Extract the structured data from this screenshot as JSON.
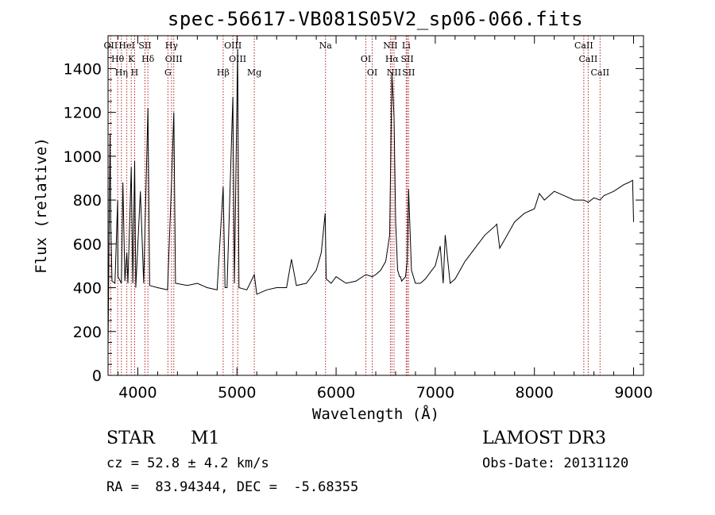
{
  "chart_data": {
    "type": "line",
    "title": "spec-56617-VB081S05V2_sp06-066.fits",
    "xlabel": "Wavelength (Å)",
    "ylabel": "Flux (relative)",
    "xlim": [
      3700,
      9100
    ],
    "ylim": [
      0,
      1550
    ],
    "xticks": [
      4000,
      5000,
      6000,
      7000,
      8000,
      9000
    ],
    "yticks": [
      0,
      200,
      400,
      600,
      800,
      1000,
      1200,
      1400
    ],
    "line_color": "#000000",
    "marker_color": "#b22222",
    "series": [
      {
        "x": [
          3700,
          3720,
          3727,
          3740,
          3770,
          3797,
          3800,
          3835,
          3850,
          3870,
          3889,
          3900,
          3934,
          3950,
          3968,
          3980,
          4026,
          4060,
          4102,
          4120,
          4200,
          4300,
          4340,
          4363,
          4380,
          4500,
          4600,
          4700,
          4800,
          4861,
          4880,
          4900,
          4959,
          4975,
          5007,
          5020,
          5100,
          5175,
          5200,
          5300,
          5400,
          5500,
          5550,
          5600,
          5700,
          5800,
          5850,
          5890,
          5900,
          5950,
          6000,
          6100,
          6200,
          6300,
          6364,
          6400,
          6450,
          6500,
          6540,
          6563,
          6584,
          6600,
          6620,
          6640,
          6650,
          6660,
          6680,
          6700,
          6717,
          6731,
          6760,
          6800,
          6850,
          6900,
          6950,
          7000,
          7050,
          7080,
          7100,
          7150,
          7200,
          7300,
          7400,
          7500,
          7550,
          7600,
          7620,
          7650,
          7700,
          7750,
          7800,
          7900,
          8000,
          8050,
          8100,
          8200,
          8300,
          8400,
          8498,
          8542,
          8600,
          8662,
          8700,
          8800,
          8900,
          8950,
          8990,
          9000
        ],
        "y": [
          120,
          1100,
          700,
          430,
          420,
          800,
          450,
          420,
          880,
          430,
          560,
          420,
          950,
          420,
          980,
          400,
          840,
          420,
          1220,
          410,
          400,
          390,
          880,
          1200,
          420,
          410,
          420,
          400,
          390,
          860,
          400,
          400,
          1270,
          420,
          1490,
          400,
          390,
          460,
          370,
          390,
          400,
          400,
          530,
          410,
          420,
          480,
          560,
          740,
          440,
          420,
          450,
          420,
          430,
          460,
          450,
          460,
          480,
          520,
          640,
          1380,
          1180,
          700,
          480,
          450,
          450,
          430,
          440,
          450,
          520,
          850,
          480,
          420,
          420,
          440,
          470,
          500,
          590,
          420,
          640,
          420,
          440,
          520,
          580,
          640,
          660,
          680,
          690,
          580,
          620,
          660,
          700,
          740,
          760,
          830,
          800,
          840,
          820,
          800,
          800,
          790,
          810,
          800,
          820,
          840,
          870,
          880,
          890,
          700
        ]
      }
    ],
    "lines": [
      {
        "x": 3727,
        "label": "OII"
      },
      {
        "x": 3797,
        "label": "Hθ"
      },
      {
        "x": 3835,
        "label": "Hη"
      },
      {
        "x": 3889,
        "label": "HeI"
      },
      {
        "x": 3934,
        "label": "K"
      },
      {
        "x": 3968,
        "label": "H"
      },
      {
        "x": 4072,
        "label": "SII"
      },
      {
        "x": 4102,
        "label": "Hδ"
      },
      {
        "x": 4304,
        "label": "G"
      },
      {
        "x": 4340,
        "label": "Hγ"
      },
      {
        "x": 4363,
        "label": "OIII"
      },
      {
        "x": 4861,
        "label": "Hβ"
      },
      {
        "x": 4959,
        "label": "OIII"
      },
      {
        "x": 5007,
        "label": "OIII"
      },
      {
        "x": 5175,
        "label": "Mg"
      },
      {
        "x": 5893,
        "label": "Na"
      },
      {
        "x": 6300,
        "label": "OI"
      },
      {
        "x": 6364,
        "label": "OI"
      },
      {
        "x": 6548,
        "label": "NII"
      },
      {
        "x": 6563,
        "label": "Hα"
      },
      {
        "x": 6584,
        "label": "NII"
      },
      {
        "x": 6707,
        "label": "Li"
      },
      {
        "x": 6717,
        "label": "SII"
      },
      {
        "x": 6731,
        "label": "SII"
      },
      {
        "x": 8498,
        "label": "CaII"
      },
      {
        "x": 8542,
        "label": "CaII"
      },
      {
        "x": 8662,
        "label": "CaII"
      }
    ]
  },
  "info": {
    "class": "STAR",
    "subclass": "M1",
    "survey": "LAMOST DR3",
    "cz": "cz = 52.8 ± 4.2 km/s",
    "obs_date": "Obs-Date: 20131120",
    "radec": "RA =  83.94344, DEC =  -5.68355"
  }
}
